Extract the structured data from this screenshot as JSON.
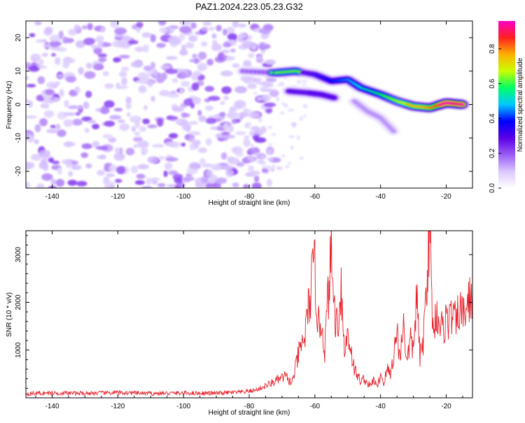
{
  "title": "PAZ1.2024.223.05.23.G32",
  "colors": {
    "snr_line": "#e8202a",
    "colorscale": [
      "#ffffff",
      "#d9c7ff",
      "#9b5cf5",
      "#5a00e6",
      "#0000ff",
      "#00c8ff",
      "#00ff66",
      "#c8ff00",
      "#ffb000",
      "#ff2020",
      "#ff00c8"
    ]
  },
  "chart_data": [
    {
      "type": "heatmap",
      "title": "PAZ1.2024.223.05.23.G32",
      "xlabel": "Height of straight line (km)",
      "ylabel": "Frequency (Hz)",
      "xlim": [
        -148,
        -12
      ],
      "ylim": [
        -25,
        25
      ],
      "x_ticks": [
        -140,
        -120,
        -100,
        -80,
        -60,
        -40,
        -20
      ],
      "y_ticks": [
        -20,
        -10,
        0,
        10,
        20
      ],
      "colorbar": {
        "label": "Normalized spectral amplitude",
        "range": [
          0,
          0.96
        ],
        "ticks": [
          0.0,
          0.2,
          0.4,
          0.6,
          0.8
        ]
      },
      "features": [
        {
          "description": "noise",
          "x_range": [
            -148,
            -72
          ],
          "y_range": [
            -25,
            25
          ],
          "amplitude": 0.12
        },
        {
          "description": "ridge",
          "points": [
            [
              -82,
              10
            ],
            [
              -72,
              9.5
            ],
            [
              -66,
              10
            ],
            [
              -60,
              9
            ],
            [
              -55,
              7
            ],
            [
              -50,
              7.5
            ],
            [
              -46,
              5
            ],
            [
              -40,
              3
            ],
            [
              -35,
              1
            ],
            [
              -30,
              -0.5
            ],
            [
              -25,
              -1
            ],
            [
              -20,
              0.5
            ],
            [
              -15,
              0
            ]
          ],
          "amplitude_range": [
            0.2,
            0.96
          ]
        },
        {
          "description": "branch",
          "points": [
            [
              -68,
              4
            ],
            [
              -62,
              3.5
            ],
            [
              -58,
              3
            ],
            [
              -54,
              2
            ]
          ],
          "amplitude": 0.3
        },
        {
          "description": "branch",
          "points": [
            [
              -48,
              1
            ],
            [
              -44,
              -2
            ],
            [
              -40,
              -4
            ],
            [
              -36,
              -8
            ]
          ],
          "amplitude": 0.15
        }
      ]
    },
    {
      "type": "line",
      "xlabel": "Height of straight line (km)",
      "ylabel": "SNR (10 * v/v)",
      "xlim": [
        -148,
        -12
      ],
      "ylim": [
        0,
        3500
      ],
      "x_ticks": [
        -140,
        -120,
        -100,
        -80,
        -60,
        -40,
        -20
      ],
      "y_ticks": [
        1000,
        2000,
        3000
      ],
      "series": [
        {
          "x": [
            -148,
            -140,
            -130,
            -120,
            -110,
            -100,
            -90,
            -82,
            -78,
            -75,
            -72,
            -69,
            -67,
            -65,
            -63,
            -61,
            -60,
            -59,
            -58,
            -57,
            -56,
            -55,
            -54,
            -53,
            -52,
            -51,
            -50,
            -49,
            -48,
            -47,
            -46,
            -45,
            -44,
            -43,
            -42,
            -41,
            -40,
            -39,
            -38,
            -37,
            -36,
            -35,
            -34,
            -33,
            -32,
            -31,
            -30,
            -29,
            -28,
            -27,
            -26,
            -25.5,
            -25,
            -24.5,
            -24,
            -23,
            -22,
            -21,
            -20,
            -19,
            -18,
            -17,
            -16,
            -15,
            -14,
            -13,
            -12
          ],
          "y": [
            90,
            100,
            95,
            110,
            90,
            100,
            95,
            120,
            160,
            250,
            350,
            450,
            300,
            900,
            1300,
            2400,
            2700,
            1500,
            1600,
            1000,
            2100,
            3000,
            1800,
            1500,
            2400,
            900,
            1400,
            1000,
            600,
            450,
            350,
            400,
            300,
            250,
            400,
            200,
            500,
            300,
            600,
            500,
            900,
            1400,
            800,
            1700,
            700,
            1200,
            1000,
            2200,
            800,
            1200,
            2300,
            3300,
            3500,
            2400,
            1400,
            1800,
            1600,
            1400,
            1700,
            1600,
            1800,
            1500,
            1900,
            1700,
            1900,
            2000,
            2200
          ]
        }
      ]
    }
  ]
}
